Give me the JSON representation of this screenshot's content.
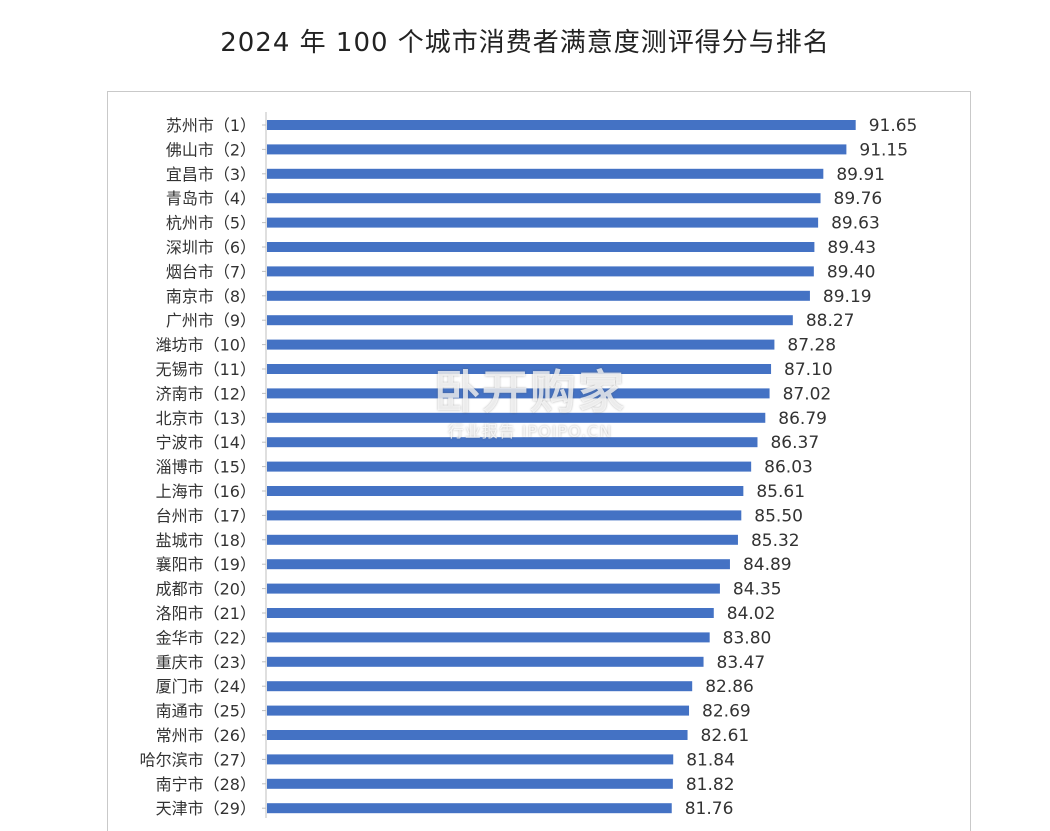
{
  "chart_data": {
    "type": "bar",
    "orientation": "horizontal",
    "title": "2024 年 100 个城市消费者满意度测评得分与排名",
    "categories": [
      "苏州市（1）",
      "佛山市（2）",
      "宜昌市（3）",
      "青岛市（4）",
      "杭州市（5）",
      "深圳市（6）",
      "烟台市（7）",
      "南京市（8）",
      "广州市（9）",
      "潍坊市（10）",
      "无锡市（11）",
      "济南市（12）",
      "北京市（13）",
      "宁波市（14）",
      "淄博市（15）",
      "上海市（16）",
      "台州市（17）",
      "盐城市（18）",
      "襄阳市（19）",
      "成都市（20）",
      "洛阳市（21）",
      "金华市（22）",
      "重庆市（23）",
      "厦门市（24）",
      "南通市（25）",
      "常州市（26）",
      "哈尔滨市（27）",
      "南宁市（28）",
      "天津市（29）"
    ],
    "values": [
      91.65,
      91.15,
      89.91,
      89.76,
      89.63,
      89.43,
      89.4,
      89.19,
      88.27,
      87.28,
      87.1,
      87.02,
      86.79,
      86.37,
      86.03,
      85.61,
      85.5,
      85.32,
      84.89,
      84.35,
      84.02,
      83.8,
      83.47,
      82.86,
      82.69,
      82.61,
      81.84,
      81.82,
      81.76
    ],
    "value_labels": [
      "91.65",
      "91.15",
      "89.91",
      "89.76",
      "89.63",
      "89.43",
      "89.40",
      "89.19",
      "88.27",
      "87.28",
      "87.10",
      "87.02",
      "86.79",
      "86.37",
      "86.03",
      "85.61",
      "85.50",
      "85.32",
      "84.89",
      "84.35",
      "84.02",
      "83.80",
      "83.47",
      "82.86",
      "82.69",
      "82.61",
      "81.84",
      "81.82",
      "81.76"
    ],
    "bar_color": "#4472c4",
    "grid": false,
    "legend": "none"
  },
  "watermark": {
    "brand": "卧开购家",
    "sub": "行业报告 IPOIPO.CN"
  }
}
